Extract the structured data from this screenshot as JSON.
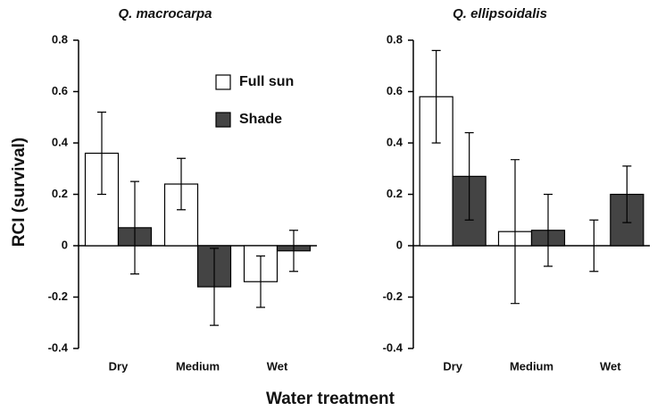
{
  "ylabel": "RCI (survival)",
  "xlabel": "Water treatment",
  "chart_data": [
    {
      "type": "bar",
      "title": "Q. macrocarpa",
      "categories": [
        "Dry",
        "Medium",
        "Wet"
      ],
      "series": [
        {
          "name": "Full sun",
          "color": "#ffffff",
          "values": [
            0.36,
            0.24,
            -0.14
          ],
          "errors": [
            0.16,
            0.1,
            0.1
          ]
        },
        {
          "name": "Shade",
          "color": "#444444",
          "values": [
            0.07,
            -0.16,
            -0.02
          ],
          "errors": [
            0.18,
            0.15,
            0.08
          ]
        }
      ],
      "ylim": [
        -0.4,
        0.8
      ],
      "yticks": [
        {
          "value": -0.4,
          "label": "-0.4"
        },
        {
          "value": -0.2,
          "label": "-0.2"
        },
        0,
        0.2,
        0.4,
        0.6,
        0.8
      ],
      "legend": true
    },
    {
      "type": "bar",
      "title": "Q. ellipsoidalis",
      "categories": [
        "Dry",
        "Medium",
        "Wet"
      ],
      "series": [
        {
          "name": "Full sun",
          "color": "#ffffff",
          "values": [
            0.58,
            0.055,
            0
          ],
          "errors": [
            0.18,
            0.28,
            0.1
          ]
        },
        {
          "name": "Shade",
          "color": "#444444",
          "values": [
            0.27,
            0.06,
            0.2
          ],
          "errors": [
            0.17,
            0.14,
            0.11
          ]
        }
      ],
      "ylim": [
        -0.4,
        0.8
      ],
      "yticks": [
        {
          "value": -0.4,
          "label": "-0.4"
        },
        {
          "value": -0.2,
          "label": "-0.2"
        },
        0,
        0.2,
        0.4,
        0.6,
        0.8
      ],
      "legend": false
    }
  ]
}
